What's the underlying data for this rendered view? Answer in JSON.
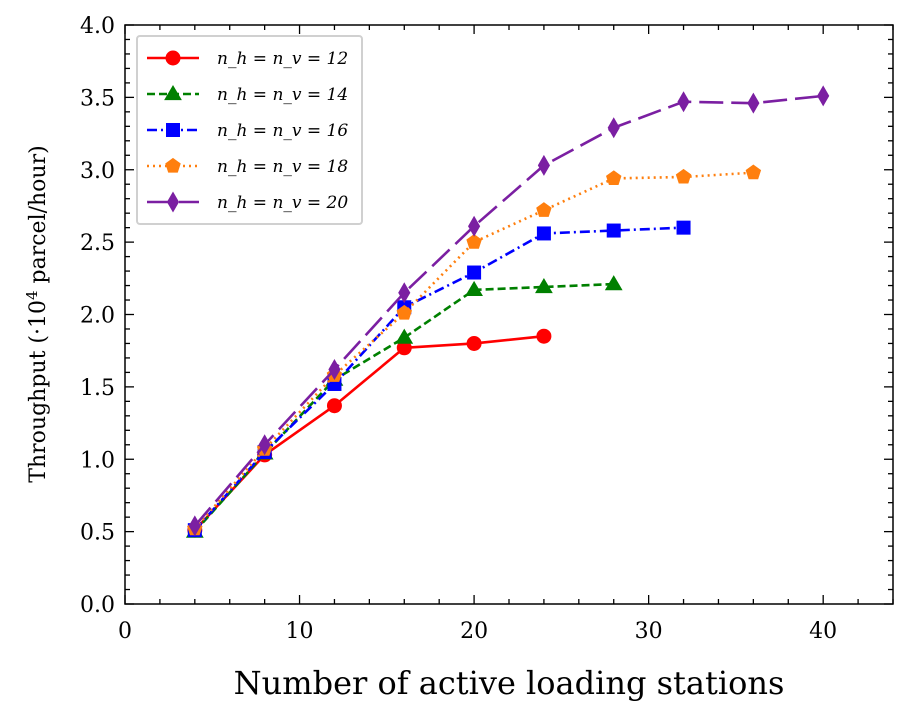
{
  "chart_data": {
    "type": "line",
    "xlabel": "Number of active loading stations",
    "ylabel": "Throughput (·10⁴ parcel/hour)",
    "xlim": [
      0,
      44
    ],
    "ylim": [
      0,
      4.0
    ],
    "xticks": [
      0,
      10,
      20,
      30,
      40
    ],
    "xtick_labels": [
      "0",
      "10",
      "20",
      "30",
      "40"
    ],
    "yticks": [
      0,
      0.5,
      1.0,
      1.5,
      2.0,
      2.5,
      3.0,
      3.5,
      4.0
    ],
    "ytick_labels": [
      "0.0",
      "0.5",
      "1.0",
      "1.5",
      "2.0",
      "2.5",
      "3.0",
      "3.5",
      "4.0"
    ],
    "grid": false,
    "legend_position": "top-left",
    "series": [
      {
        "name": "n_h = n_v = 12",
        "color": "#ff0000",
        "marker": "circle",
        "linestyle": "solid",
        "x": [
          4,
          8,
          12,
          16,
          20,
          24
        ],
        "y": [
          0.51,
          1.03,
          1.37,
          1.77,
          1.8,
          1.85
        ]
      },
      {
        "name": "n_h = n_v = 14",
        "color": "#008000",
        "marker": "triangle",
        "linestyle": "dashed",
        "x": [
          4,
          8,
          12,
          16,
          20,
          24,
          28
        ],
        "y": [
          0.5,
          1.04,
          1.55,
          1.84,
          2.17,
          2.19,
          2.21
        ]
      },
      {
        "name": "n_h = n_v = 16",
        "color": "#0000ff",
        "marker": "square",
        "linestyle": "dashdot",
        "x": [
          4,
          8,
          12,
          16,
          20,
          24,
          28,
          32
        ],
        "y": [
          0.51,
          1.05,
          1.52,
          2.05,
          2.29,
          2.56,
          2.58,
          2.6
        ]
      },
      {
        "name": "n_h = n_v = 18",
        "color": "#ff7f0e",
        "marker": "pentagon",
        "linestyle": "dotted",
        "x": [
          4,
          8,
          12,
          16,
          20,
          24,
          28,
          32,
          36
        ],
        "y": [
          0.52,
          1.07,
          1.58,
          2.01,
          2.5,
          2.72,
          2.94,
          2.95,
          2.98
        ]
      },
      {
        "name": "n_h = n_v = 20",
        "color": "#7b1fa2",
        "marker": "thin-diamond",
        "linestyle": "longdash",
        "x": [
          4,
          8,
          12,
          16,
          20,
          24,
          28,
          32,
          36,
          40
        ],
        "y": [
          0.54,
          1.1,
          1.62,
          2.15,
          2.61,
          3.03,
          3.29,
          3.47,
          3.46,
          3.51
        ]
      }
    ]
  }
}
